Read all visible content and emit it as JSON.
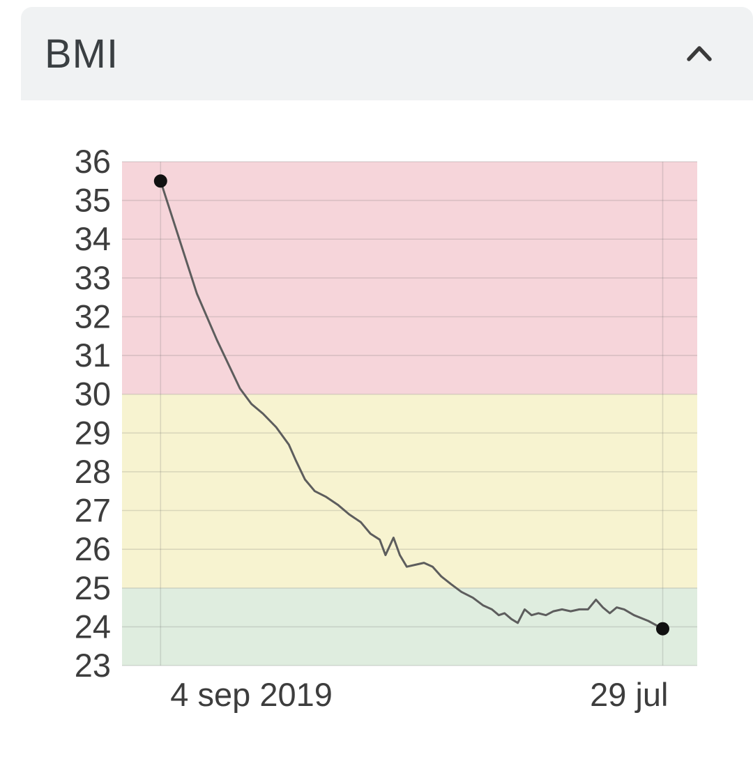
{
  "card": {
    "title": "BMI",
    "collapse_icon": "chevron-up"
  },
  "chart_data": {
    "type": "line",
    "title": "BMI",
    "xlabel": "",
    "ylabel": "",
    "ylim": [
      23,
      36
    ],
    "yticks": [
      36,
      35,
      34,
      33,
      32,
      31,
      30,
      29,
      28,
      27,
      26,
      25,
      24,
      23
    ],
    "xticks": [
      {
        "pos": 0.067,
        "label": "4 sep 2019",
        "align": "start"
      },
      {
        "pos": 0.94,
        "label": "29 jul",
        "align": "end"
      }
    ],
    "bands": [
      {
        "name": "high-zone",
        "from": 30,
        "to": 36,
        "color": "#f6d5da"
      },
      {
        "name": "elevated-zone",
        "from": 25,
        "to": 30,
        "color": "#f7f3d0"
      },
      {
        "name": "healthy-zone",
        "from": 23,
        "to": 25,
        "color": "#dfeddf"
      }
    ],
    "grid": true,
    "grid_color": "rgba(100,100,100,0.2)",
    "legend": "none",
    "line_color": "#5d5d5d",
    "marker_color": "#111111",
    "axis_text_color": "#3d3d3d",
    "series": [
      {
        "name": "BMI",
        "points": [
          [
            0.067,
            35.5
          ],
          [
            0.13,
            32.6
          ],
          [
            0.165,
            31.4
          ],
          [
            0.205,
            30.15
          ],
          [
            0.225,
            29.75
          ],
          [
            0.245,
            29.5
          ],
          [
            0.268,
            29.15
          ],
          [
            0.29,
            28.7
          ],
          [
            0.302,
            28.3
          ],
          [
            0.318,
            27.8
          ],
          [
            0.335,
            27.5
          ],
          [
            0.355,
            27.35
          ],
          [
            0.375,
            27.15
          ],
          [
            0.395,
            26.9
          ],
          [
            0.415,
            26.7
          ],
          [
            0.432,
            26.4
          ],
          [
            0.448,
            26.25
          ],
          [
            0.458,
            25.85
          ],
          [
            0.472,
            26.3
          ],
          [
            0.483,
            25.85
          ],
          [
            0.495,
            25.55
          ],
          [
            0.51,
            25.6
          ],
          [
            0.525,
            25.65
          ],
          [
            0.54,
            25.55
          ],
          [
            0.555,
            25.3
          ],
          [
            0.572,
            25.1
          ],
          [
            0.59,
            24.9
          ],
          [
            0.61,
            24.75
          ],
          [
            0.628,
            24.55
          ],
          [
            0.643,
            24.45
          ],
          [
            0.655,
            24.3
          ],
          [
            0.665,
            24.35
          ],
          [
            0.677,
            24.2
          ],
          [
            0.688,
            24.1
          ],
          [
            0.7,
            24.45
          ],
          [
            0.712,
            24.3
          ],
          [
            0.724,
            24.35
          ],
          [
            0.737,
            24.3
          ],
          [
            0.75,
            24.4
          ],
          [
            0.765,
            24.45
          ],
          [
            0.78,
            24.4
          ],
          [
            0.795,
            24.45
          ],
          [
            0.81,
            24.45
          ],
          [
            0.824,
            24.7
          ],
          [
            0.836,
            24.5
          ],
          [
            0.848,
            24.35
          ],
          [
            0.86,
            24.5
          ],
          [
            0.873,
            24.45
          ],
          [
            0.89,
            24.3
          ],
          [
            0.915,
            24.15
          ],
          [
            0.94,
            23.95
          ]
        ]
      }
    ],
    "endpoints": {
      "first_value": 35.5,
      "last_value": 23.95
    }
  }
}
